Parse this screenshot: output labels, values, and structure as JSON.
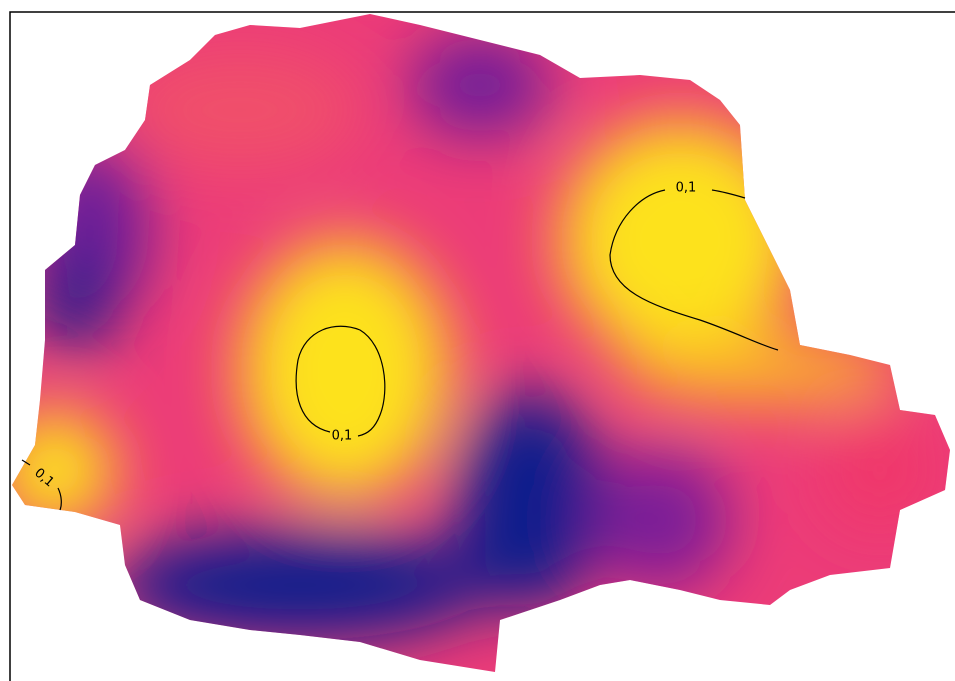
{
  "map": {
    "contours": [
      {
        "label": "0,1"
      },
      {
        "label": "0,1"
      },
      {
        "label": "0,1"
      }
    ]
  }
}
